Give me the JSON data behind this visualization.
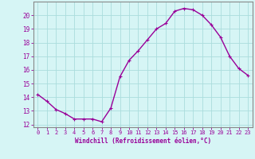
{
  "x": [
    0,
    1,
    2,
    3,
    4,
    5,
    6,
    7,
    8,
    9,
    10,
    11,
    12,
    13,
    14,
    15,
    16,
    17,
    18,
    19,
    20,
    21,
    22,
    23
  ],
  "y": [
    14.2,
    13.7,
    13.1,
    12.8,
    12.4,
    12.4,
    12.4,
    12.2,
    13.2,
    15.5,
    16.7,
    17.4,
    18.2,
    19.0,
    19.4,
    20.3,
    20.5,
    20.4,
    20.0,
    19.3,
    18.4,
    17.0,
    16.1,
    15.6
  ],
  "line_color": "#990099",
  "marker": "+",
  "bg_color": "#d6f5f5",
  "grid_color": "#aadddd",
  "xlabel": "Windchill (Refroidissement éolien,°C)",
  "xlabel_color": "#990099",
  "tick_color": "#990099",
  "ylim": [
    11.8,
    21.0
  ],
  "xlim": [
    -0.5,
    23.5
  ],
  "yticks": [
    12,
    13,
    14,
    15,
    16,
    17,
    18,
    19,
    20
  ],
  "xticks": [
    0,
    1,
    2,
    3,
    4,
    5,
    6,
    7,
    8,
    9,
    10,
    11,
    12,
    13,
    14,
    15,
    16,
    17,
    18,
    19,
    20,
    21,
    22,
    23
  ],
  "xtick_labels": [
    "0",
    "1",
    "2",
    "3",
    "4",
    "5",
    "6",
    "7",
    "8",
    "9",
    "10",
    "11",
    "12",
    "13",
    "14",
    "15",
    "16",
    "17",
    "18",
    "19",
    "20",
    "21",
    "22",
    "23"
  ],
  "line_width": 1.0,
  "marker_size": 3,
  "spine_color": "#888888"
}
